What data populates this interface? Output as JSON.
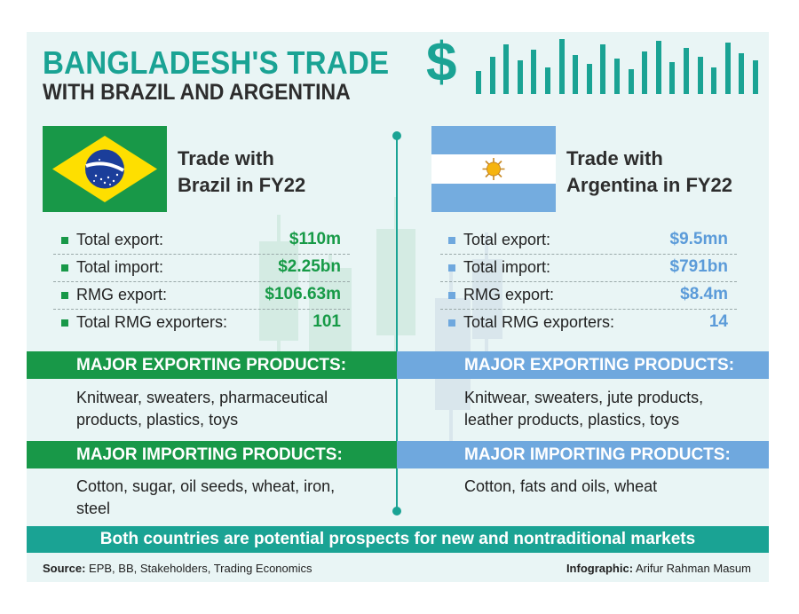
{
  "title": {
    "line1": "BANGLADESH'S TRADE",
    "line2": "WITH BRAZIL AND ARGENTINA",
    "dollar_symbol": "$"
  },
  "colors": {
    "teal": "#1aa394",
    "brazil_green": "#189848",
    "argentina_blue": "#6fa8de",
    "brazil_value": "#179a47",
    "argentina_value": "#5b9bd9"
  },
  "brazil": {
    "heading_line1": "Trade with",
    "heading_line2": "Brazil in FY22",
    "flag_motto": "ORDEM E PROGRESSO",
    "stats": [
      {
        "label": "Total export:",
        "value": "$110m"
      },
      {
        "label": "Total import:",
        "value": "$2.25bn"
      },
      {
        "label": "RMG export:",
        "value": "$106.63m"
      },
      {
        "label": "Total RMG exporters:",
        "value": "101"
      }
    ],
    "exporting_heading": "MAJOR EXPORTING PRODUCTS:",
    "exporting_text": "Knitwear, sweaters, pharmaceutical products, plastics, toys",
    "importing_heading": "MAJOR IMPORTING PRODUCTS:",
    "importing_text": "Cotton, sugar, oil seeds, wheat, iron, steel"
  },
  "argentina": {
    "heading_line1": "Trade with",
    "heading_line2": "Argentina in FY22",
    "stats": [
      {
        "label": "Total export:",
        "value": "$9.5mn"
      },
      {
        "label": "Total import:",
        "value": "$791bn"
      },
      {
        "label": "RMG export:",
        "value": "$8.4m"
      },
      {
        "label": "Total RMG exporters:",
        "value": "14"
      }
    ],
    "exporting_heading": "MAJOR EXPORTING PRODUCTS:",
    "exporting_text": "Knitwear, sweaters, jute products, leather products, plastics, toys",
    "importing_heading": "MAJOR IMPORTING PRODUCTS:",
    "importing_text": "Cotton, fats and oils, wheat"
  },
  "bottom_banner": "Both countries are potential prospects for new and nontraditional markets",
  "footer": {
    "source_label": "Source:",
    "source_text": "EPB, BB, Stakeholders, Trading Economics",
    "credit_label": "Infographic:",
    "credit_text": "Arifur Rahman Masum"
  }
}
